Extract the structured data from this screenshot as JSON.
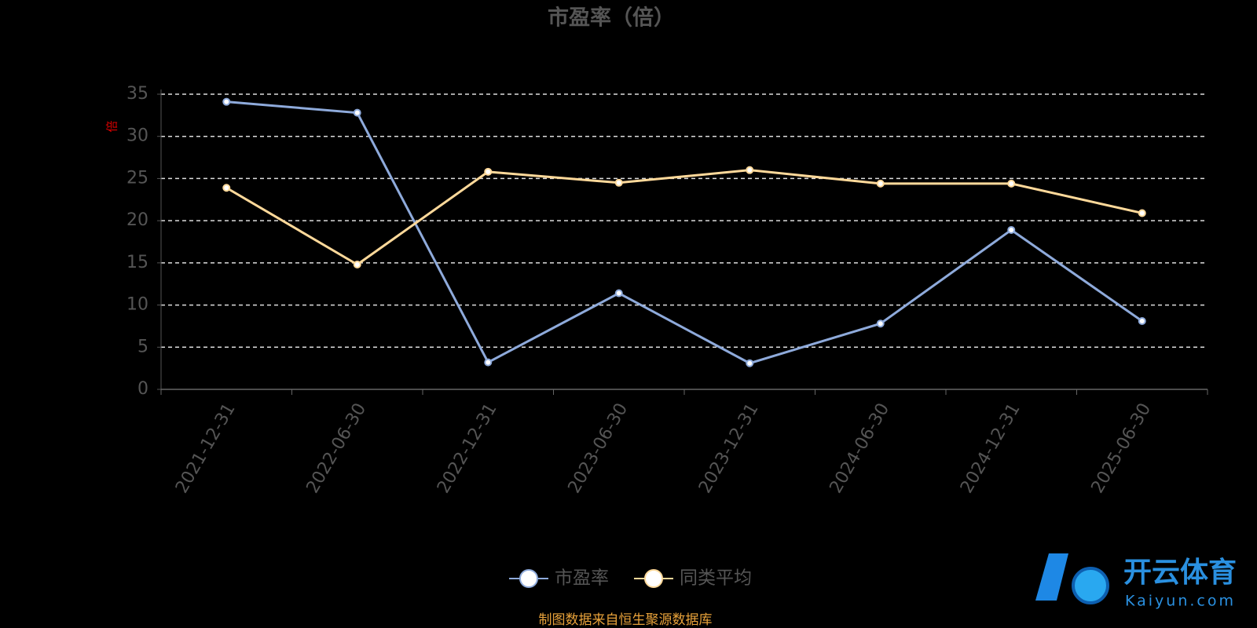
{
  "chart_data": {
    "type": "line",
    "title": "市盈率（倍）",
    "y_label": "倍",
    "categories": [
      "2021-12-31",
      "2022-06-30",
      "2022-12-31",
      "2023-06-30",
      "2023-12-31",
      "2024-06-30",
      "2024-12-31",
      "2025-06-30"
    ],
    "series": [
      {
        "name": "市盈率",
        "color": "#8eaadb",
        "values": [
          34.1,
          32.8,
          3.2,
          11.4,
          3.1,
          7.8,
          18.9,
          8.1
        ]
      },
      {
        "name": "同类平均",
        "color": "#ffd99a",
        "values": [
          23.9,
          14.8,
          25.8,
          24.5,
          26.0,
          24.4,
          24.4,
          20.9
        ]
      }
    ],
    "ylim": [
      0,
      35
    ],
    "yticks": [
      0,
      5,
      10,
      15,
      20,
      25,
      30,
      35
    ],
    "grid": true,
    "footer": "制图数据来自恒生聚源数据库",
    "watermark": {
      "brand": "开云体育",
      "site": "Kaiyun.com"
    }
  }
}
